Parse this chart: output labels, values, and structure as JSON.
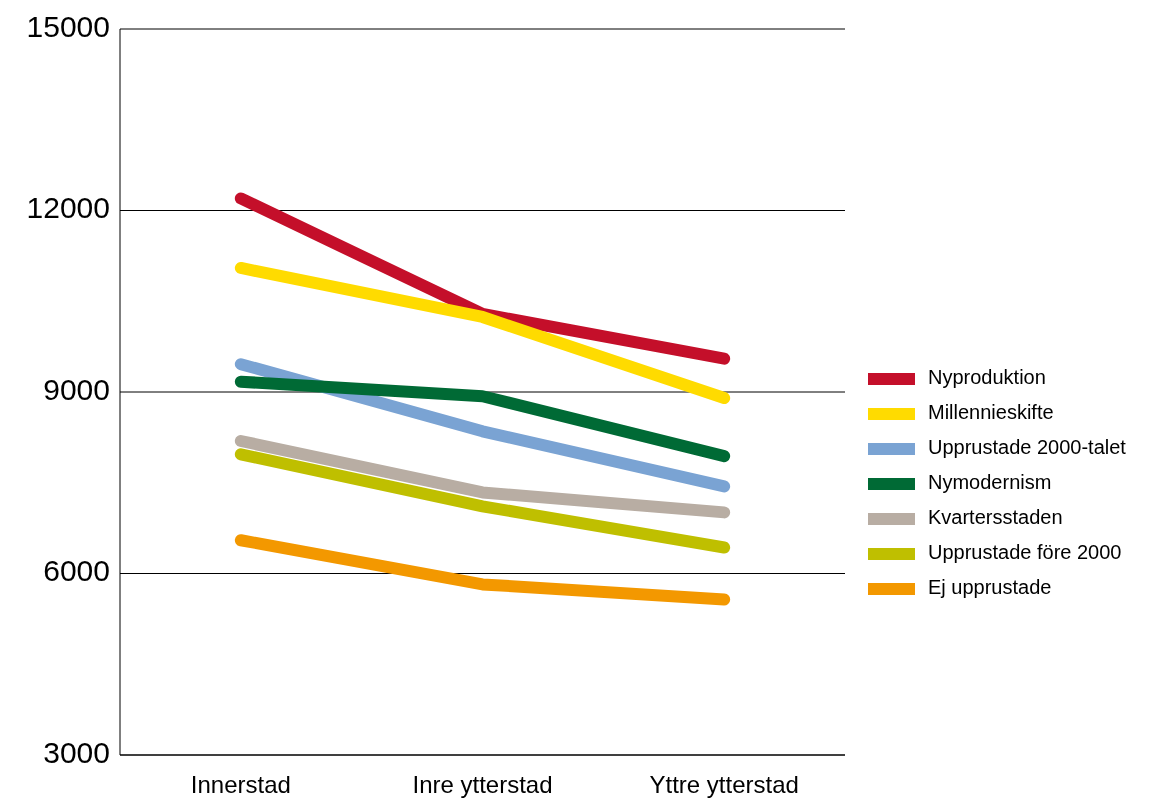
{
  "chart_data": {
    "type": "line",
    "categories": [
      "Innerstad",
      "Inre ytterstad",
      "Yttre ytterstad"
    ],
    "series": [
      {
        "name": "Nyproduktion",
        "color": "#c40f2a",
        "values": [
          12200,
          10290,
          9550
        ]
      },
      {
        "name": "Millennieskifte",
        "color": "#ffdb00",
        "values": [
          11050,
          10240,
          8900
        ]
      },
      {
        "name": "Upprustade 2000-talet",
        "color": "#7aa3d3",
        "values": [
          9460,
          8350,
          7440
        ]
      },
      {
        "name": "Nymodernism",
        "color": "#006a35",
        "values": [
          9170,
          8930,
          7940
        ]
      },
      {
        "name": "Kvartersstaden",
        "color": "#b8ada3",
        "values": [
          8190,
          7340,
          7010
        ]
      },
      {
        "name": "Upprustade före 2000",
        "color": "#bfbf00",
        "values": [
          7970,
          7110,
          6430
        ]
      },
      {
        "name": "Ej upprustade",
        "color": "#f39800",
        "values": [
          6550,
          5820,
          5570
        ]
      }
    ],
    "ylim": [
      3000,
      15000
    ],
    "yticks": [
      3000,
      6000,
      9000,
      12000,
      15000
    ],
    "grid": "y",
    "legend": "right",
    "marker": "none",
    "line_style": "solid"
  }
}
